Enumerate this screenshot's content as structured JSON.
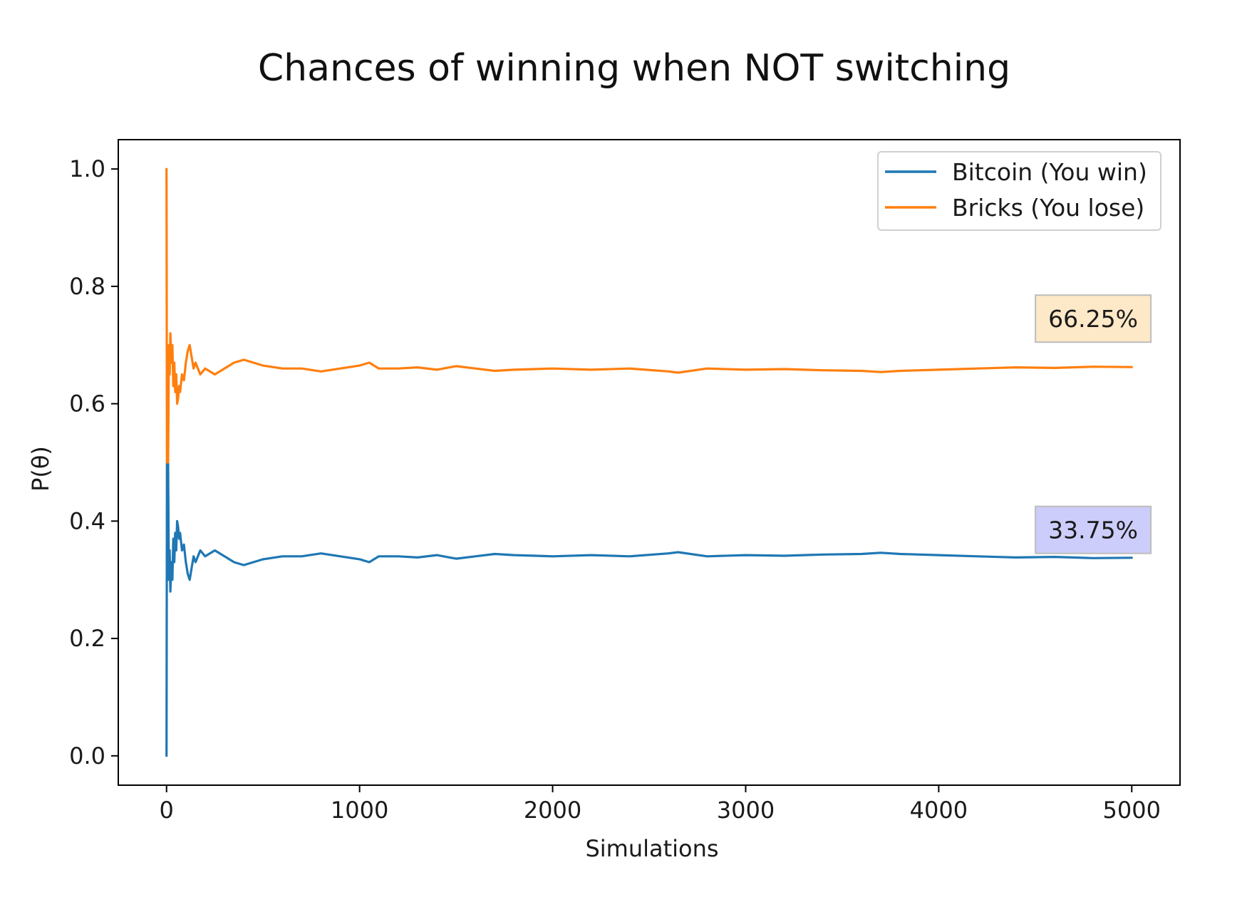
{
  "chart_data": {
    "type": "line",
    "title": "Chances of winning when NOT switching",
    "xlabel": "Simulations",
    "ylabel": "P(θ)",
    "xlim": [
      -250,
      5250
    ],
    "ylim": [
      -0.05,
      1.05
    ],
    "xticks": [
      0,
      1000,
      2000,
      3000,
      4000,
      5000
    ],
    "xtick_labels": [
      "0",
      "1000",
      "2000",
      "3000",
      "4000",
      "5000"
    ],
    "yticks": [
      0.0,
      0.2,
      0.4,
      0.6,
      0.8,
      1.0
    ],
    "ytick_labels": [
      "0.0",
      "0.2",
      "0.4",
      "0.6",
      "0.8",
      "1.0"
    ],
    "grid": false,
    "legend_position": "top-right",
    "series": [
      {
        "name": "Bitcoin (You win)",
        "color": "#1f77b4",
        "x": [
          0,
          2,
          4,
          8,
          12,
          16,
          20,
          25,
          30,
          35,
          40,
          45,
          50,
          55,
          60,
          65,
          70,
          80,
          90,
          100,
          110,
          120,
          130,
          140,
          150,
          175,
          200,
          250,
          300,
          350,
          400,
          450,
          500,
          600,
          700,
          800,
          900,
          1000,
          1050,
          1100,
          1200,
          1300,
          1400,
          1500,
          1600,
          1700,
          1800,
          2000,
          2200,
          2400,
          2600,
          2650,
          2800,
          3000,
          3200,
          3400,
          3600,
          3700,
          3800,
          4000,
          4200,
          4400,
          4600,
          4800,
          5000
        ],
        "values": [
          0.0,
          0.5,
          0.33,
          0.5,
          0.3,
          0.35,
          0.28,
          0.33,
          0.3,
          0.37,
          0.33,
          0.38,
          0.35,
          0.4,
          0.39,
          0.37,
          0.38,
          0.35,
          0.36,
          0.33,
          0.31,
          0.3,
          0.32,
          0.34,
          0.33,
          0.35,
          0.34,
          0.35,
          0.34,
          0.33,
          0.325,
          0.33,
          0.335,
          0.34,
          0.34,
          0.345,
          0.34,
          0.335,
          0.33,
          0.34,
          0.34,
          0.338,
          0.342,
          0.336,
          0.34,
          0.344,
          0.342,
          0.34,
          0.342,
          0.34,
          0.345,
          0.347,
          0.34,
          0.342,
          0.341,
          0.343,
          0.344,
          0.346,
          0.344,
          0.342,
          0.34,
          0.338,
          0.339,
          0.337,
          0.3375
        ]
      },
      {
        "name": "Bricks (You lose)",
        "color": "#ff7f0e",
        "x": [
          0,
          2,
          4,
          8,
          12,
          16,
          20,
          25,
          30,
          35,
          40,
          45,
          50,
          55,
          60,
          65,
          70,
          80,
          90,
          100,
          110,
          120,
          130,
          140,
          150,
          175,
          200,
          250,
          300,
          350,
          400,
          450,
          500,
          600,
          700,
          800,
          900,
          1000,
          1050,
          1100,
          1200,
          1300,
          1400,
          1500,
          1600,
          1700,
          1800,
          2000,
          2200,
          2400,
          2600,
          2650,
          2800,
          3000,
          3200,
          3400,
          3600,
          3700,
          3800,
          4000,
          4200,
          4400,
          4600,
          4800,
          5000
        ],
        "values": [
          1.0,
          0.5,
          0.67,
          0.5,
          0.7,
          0.65,
          0.72,
          0.67,
          0.7,
          0.63,
          0.67,
          0.62,
          0.65,
          0.6,
          0.61,
          0.63,
          0.62,
          0.65,
          0.64,
          0.67,
          0.69,
          0.7,
          0.68,
          0.66,
          0.67,
          0.65,
          0.66,
          0.65,
          0.66,
          0.67,
          0.675,
          0.67,
          0.665,
          0.66,
          0.66,
          0.655,
          0.66,
          0.665,
          0.67,
          0.66,
          0.66,
          0.662,
          0.658,
          0.664,
          0.66,
          0.656,
          0.658,
          0.66,
          0.658,
          0.66,
          0.655,
          0.653,
          0.66,
          0.658,
          0.659,
          0.657,
          0.656,
          0.654,
          0.656,
          0.658,
          0.66,
          0.662,
          0.661,
          0.663,
          0.6625
        ]
      }
    ],
    "annotations": [
      {
        "text": "66.25%",
        "x": 4800,
        "y": 0.745,
        "color": "#fde8c7"
      },
      {
        "text": "33.75%",
        "x": 4800,
        "y": 0.385,
        "color": "#cdcdfb"
      }
    ]
  }
}
